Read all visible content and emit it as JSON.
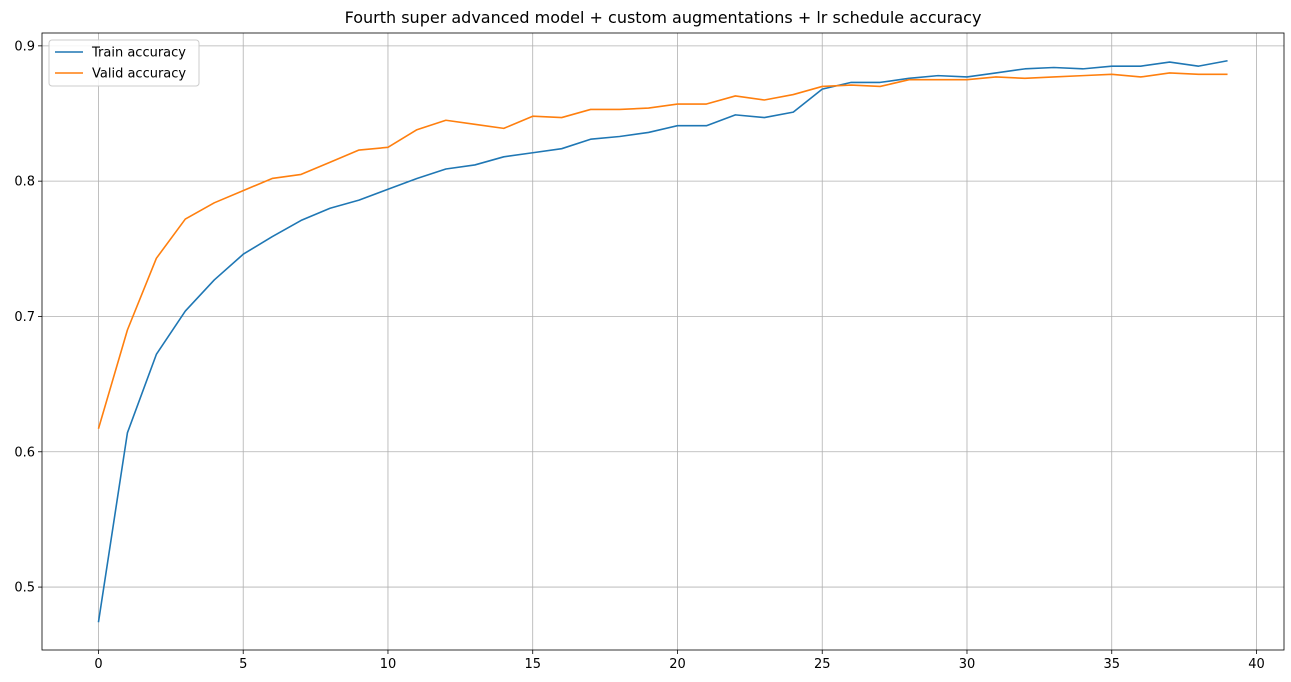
{
  "chart_data": {
    "type": "line",
    "title": "Fourth super advanced model + custom augmentations + lr schedule accuracy",
    "xlabel": "",
    "ylabel": "",
    "xlim": [
      -1.95,
      40.95
    ],
    "ylim": [
      0.4535,
      0.9095
    ],
    "xticks": [
      0,
      5,
      10,
      15,
      20,
      25,
      30,
      35,
      40
    ],
    "yticks": [
      0.5,
      0.6,
      0.7,
      0.8,
      0.9
    ],
    "grid": true,
    "legend_position": "top-left",
    "x": [
      0,
      1,
      2,
      3,
      4,
      5,
      6,
      7,
      8,
      9,
      10,
      11,
      12,
      13,
      14,
      15,
      16,
      17,
      18,
      19,
      20,
      21,
      22,
      23,
      24,
      25,
      26,
      27,
      28,
      29,
      30,
      31,
      32,
      33,
      34,
      35,
      36,
      37,
      38,
      39
    ],
    "series": [
      {
        "name": "Train accuracy",
        "color": "#1f77b4",
        "values": [
          0.474,
          0.614,
          0.672,
          0.704,
          0.727,
          0.746,
          0.759,
          0.771,
          0.78,
          0.786,
          0.794,
          0.802,
          0.809,
          0.812,
          0.818,
          0.821,
          0.824,
          0.831,
          0.833,
          0.836,
          0.841,
          0.841,
          0.849,
          0.847,
          0.851,
          0.868,
          0.873,
          0.873,
          0.876,
          0.878,
          0.877,
          0.88,
          0.883,
          0.884,
          0.883,
          0.885,
          0.885,
          0.888,
          0.885,
          0.889
        ]
      },
      {
        "name": "Valid accuracy",
        "color": "#ff7f0e",
        "values": [
          0.617,
          0.69,
          0.743,
          0.772,
          0.784,
          0.793,
          0.802,
          0.805,
          0.814,
          0.823,
          0.825,
          0.838,
          0.845,
          0.842,
          0.839,
          0.848,
          0.847,
          0.853,
          0.853,
          0.854,
          0.857,
          0.857,
          0.863,
          0.86,
          0.864,
          0.87,
          0.871,
          0.87,
          0.875,
          0.875,
          0.875,
          0.877,
          0.876,
          0.877,
          0.878,
          0.879,
          0.877,
          0.88,
          0.879,
          0.879
        ]
      }
    ]
  }
}
